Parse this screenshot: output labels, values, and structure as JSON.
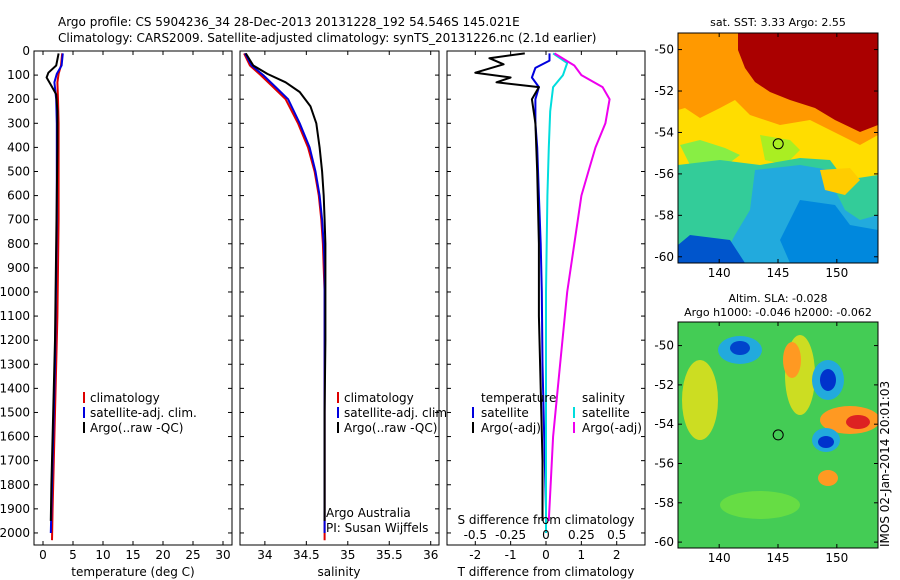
{
  "title_line1": "Argo profile: CS 5904236_34 28-Dec-2013 20131228_192 54.546S 145.021E",
  "title_line2": "Climatology: CARS2009. Satellite-adjusted climatology: synTS_20131226.nc (2.1d earlier)",
  "colors": {
    "climatology": "#dd0000",
    "satellite": "#0000dd",
    "argo": "#000000",
    "sat_s": "#00dddd",
    "argo_s": "#ee00ee"
  },
  "chart_data": [
    {
      "type": "line",
      "id": "temperature",
      "xlabel": "temperature (deg C)",
      "ylabel": "",
      "xlim": [
        -1.5,
        31.5
      ],
      "ylim": [
        2050,
        0
      ],
      "xticks": [
        0,
        5,
        10,
        15,
        20,
        25,
        30
      ],
      "xtick_labels": [
        "0",
        "5",
        "10",
        "15",
        "20",
        "25",
        "30"
      ],
      "yticks": [
        0,
        100,
        200,
        300,
        400,
        500,
        600,
        700,
        800,
        900,
        1000,
        1100,
        1200,
        1300,
        1400,
        1500,
        1600,
        1700,
        1800,
        1900,
        2000
      ],
      "ytick_labels": [
        "0",
        "100",
        "200",
        "300",
        "400",
        "500",
        "600",
        "700",
        "800",
        "900",
        "1000",
        "1100",
        "1200",
        "1300",
        "1400",
        "1500",
        "1600",
        "1700",
        "1800",
        "1900",
        "2000"
      ],
      "legend": {
        "position": "bottom-right",
        "entries": [
          "climatology",
          "satellite-adj. clim.",
          "Argo(..raw -QC)"
        ]
      },
      "series": [
        {
          "name": "climatology",
          "color": "climatology",
          "points": [
            [
              3.2,
              10
            ],
            [
              3.0,
              60
            ],
            [
              2.6,
              95
            ],
            [
              2.4,
              130
            ],
            [
              2.5,
              200
            ],
            [
              2.6,
              300
            ],
            [
              2.6,
              500
            ],
            [
              2.6,
              700
            ],
            [
              2.5,
              900
            ],
            [
              2.4,
              1100
            ],
            [
              2.2,
              1300
            ],
            [
              2.0,
              1500
            ],
            [
              1.8,
              1700
            ],
            [
              1.6,
              1900
            ],
            [
              1.5,
              2030
            ]
          ]
        },
        {
          "name": "satellite-adj. clim.",
          "color": "satellite",
          "points": [
            [
              3.3,
              10
            ],
            [
              3.1,
              60
            ],
            [
              2.3,
              95
            ],
            [
              1.9,
              130
            ],
            [
              2.2,
              200
            ],
            [
              2.3,
              300
            ],
            [
              2.3,
              500
            ],
            [
              2.3,
              700
            ],
            [
              2.2,
              900
            ],
            [
              2.1,
              1100
            ],
            [
              2.0,
              1300
            ],
            [
              1.8,
              1500
            ],
            [
              1.6,
              1700
            ],
            [
              1.4,
              1900
            ],
            [
              1.3,
              2000
            ]
          ]
        },
        {
          "name": "Argo(..raw -QC)",
          "color": "argo",
          "points": [
            [
              2.6,
              10
            ],
            [
              2.2,
              60
            ],
            [
              0.9,
              90
            ],
            [
              0.6,
              110
            ],
            [
              1.3,
              140
            ],
            [
              2.2,
              180
            ],
            [
              2.4,
              250
            ],
            [
              2.4,
              400
            ],
            [
              2.3,
              600
            ],
            [
              2.2,
              800
            ],
            [
              2.1,
              1000
            ],
            [
              2.0,
              1200
            ],
            [
              1.8,
              1400
            ],
            [
              1.6,
              1600
            ],
            [
              1.4,
              1800
            ],
            [
              1.3,
              1950
            ]
          ]
        }
      ]
    },
    {
      "type": "line",
      "id": "salinity",
      "xlabel": "salinity",
      "ylabel": "",
      "xlim": [
        33.7,
        36.1
      ],
      "ylim": [
        2050,
        0
      ],
      "xticks": [
        34,
        34.5,
        35,
        35.5,
        36
      ],
      "xtick_labels": [
        "34",
        "34.5",
        "35",
        "35.5",
        "36"
      ],
      "legend": {
        "position": "bottom-right",
        "entries": [
          "climatology",
          "satellite-adj. clim.",
          "Argo(..raw -QC)"
        ]
      },
      "annotation": [
        "Argo Australia",
        "PI: Susan Wijffels"
      ],
      "series": [
        {
          "name": "climatology",
          "color": "climatology",
          "points": [
            [
              33.75,
              10
            ],
            [
              33.82,
              60
            ],
            [
              33.95,
              100
            ],
            [
              34.1,
              150
            ],
            [
              34.25,
              200
            ],
            [
              34.4,
              300
            ],
            [
              34.52,
              400
            ],
            [
              34.6,
              500
            ],
            [
              34.65,
              600
            ],
            [
              34.68,
              700
            ],
            [
              34.7,
              800
            ],
            [
              34.71,
              900
            ],
            [
              34.72,
              1000
            ],
            [
              34.72,
              1200
            ],
            [
              34.72,
              1500
            ],
            [
              34.72,
              1800
            ],
            [
              34.72,
              2030
            ]
          ]
        },
        {
          "name": "satellite-adj. clim.",
          "color": "satellite",
          "points": [
            [
              33.76,
              10
            ],
            [
              33.84,
              60
            ],
            [
              33.98,
              100
            ],
            [
              34.13,
              150
            ],
            [
              34.28,
              200
            ],
            [
              34.42,
              300
            ],
            [
              34.54,
              400
            ],
            [
              34.61,
              500
            ],
            [
              34.66,
              600
            ],
            [
              34.69,
              700
            ],
            [
              34.71,
              800
            ],
            [
              34.72,
              900
            ],
            [
              34.72,
              1000
            ],
            [
              34.72,
              1300
            ],
            [
              34.72,
              1600
            ],
            [
              34.72,
              1900
            ],
            [
              34.72,
              2000
            ]
          ]
        },
        {
          "name": "Argo(..raw -QC)",
          "color": "argo",
          "points": [
            [
              33.77,
              10
            ],
            [
              33.86,
              60
            ],
            [
              34.03,
              95
            ],
            [
              34.25,
              130
            ],
            [
              34.42,
              170
            ],
            [
              34.55,
              230
            ],
            [
              34.62,
              300
            ],
            [
              34.66,
              400
            ],
            [
              34.69,
              500
            ],
            [
              34.71,
              600
            ],
            [
              34.72,
              700
            ],
            [
              34.73,
              800
            ],
            [
              34.73,
              900
            ],
            [
              34.73,
              1000
            ],
            [
              34.73,
              1200
            ],
            [
              34.72,
              1500
            ],
            [
              34.72,
              1800
            ],
            [
              34.72,
              1950
            ]
          ]
        }
      ]
    },
    {
      "type": "line",
      "id": "difference",
      "xlabel": "T difference from climatology",
      "xlabel_top": "S difference from climatology",
      "xlim": [
        -2.8,
        2.8
      ],
      "ylim": [
        2050,
        0
      ],
      "xticks": [
        -2,
        -1,
        0,
        1,
        2
      ],
      "xtick_labels": [
        "-2",
        "-1",
        "0",
        "1",
        "2"
      ],
      "sticks": [
        -0.5,
        -0.25,
        0,
        0.25,
        0.5
      ],
      "stick_labels": [
        "-0.5",
        "-0.25",
        "0",
        "0.25",
        "0.5"
      ],
      "legend": {
        "position": "bottom",
        "temp_title": "temperature",
        "sal_title": "salinity",
        "temp_entries": [
          "satellite",
          "Argo(-adj)"
        ],
        "sal_entries": [
          "satellite",
          "Argo(-adj)"
        ]
      },
      "series": [
        {
          "name": "T satellite",
          "color": "satellite",
          "points": [
            [
              0.1,
              10
            ],
            [
              0.1,
              40
            ],
            [
              -0.3,
              70
            ],
            [
              -0.4,
              110
            ],
            [
              -0.2,
              150
            ],
            [
              -0.3,
              200
            ],
            [
              -0.3,
              300
            ],
            [
              -0.25,
              400
            ],
            [
              -0.2,
              600
            ],
            [
              -0.15,
              800
            ],
            [
              -0.12,
              1000
            ],
            [
              -0.1,
              1300
            ],
            [
              -0.05,
              1600
            ],
            [
              0,
              1900
            ],
            [
              0,
              2000
            ]
          ]
        },
        {
          "name": "T Argo(-adj)",
          "color": "argo",
          "points": [
            [
              -0.6,
              10
            ],
            [
              -1.6,
              30
            ],
            [
              -1.2,
              55
            ],
            [
              -2.0,
              90
            ],
            [
              -1.0,
              110
            ],
            [
              -1.4,
              130
            ],
            [
              -0.2,
              150
            ],
            [
              -0.4,
              200
            ],
            [
              -0.3,
              300
            ],
            [
              -0.25,
              500
            ],
            [
              -0.2,
              800
            ],
            [
              -0.2,
              1100
            ],
            [
              -0.15,
              1400
            ],
            [
              -0.1,
              1700
            ],
            [
              -0.1,
              1950
            ]
          ]
        },
        {
          "name": "S satellite",
          "color": "sat_s",
          "points": [
            [
              0.05,
              10
            ],
            [
              0.15,
              50
            ],
            [
              0.12,
              100
            ],
            [
              0.05,
              150
            ],
            [
              0.03,
              250
            ],
            [
              0.02,
              400
            ],
            [
              0.01,
              600
            ],
            [
              0.0,
              1000
            ],
            [
              0.0,
              1500
            ],
            [
              0.0,
              2000
            ]
          ]
        },
        {
          "name": "S Argo(-adj)",
          "color": "argo_s",
          "points": [
            [
              0.06,
              10
            ],
            [
              0.2,
              60
            ],
            [
              0.25,
              100
            ],
            [
              0.4,
              150
            ],
            [
              0.45,
              200
            ],
            [
              0.42,
              300
            ],
            [
              0.35,
              400
            ],
            [
              0.3,
              500
            ],
            [
              0.25,
              600
            ],
            [
              0.2,
              800
            ],
            [
              0.15,
              1000
            ],
            [
              0.1,
              1300
            ],
            [
              0.05,
              1600
            ],
            [
              0.02,
              1950
            ]
          ]
        }
      ]
    },
    {
      "type": "heatmap",
      "id": "sst_map",
      "title": "sat. SST: 3.33 Argo: 2.55",
      "xlim": [
        136.5,
        153.5
      ],
      "ylim": [
        -60.3,
        -49.2
      ],
      "xticks": [
        140,
        145,
        150
      ],
      "xtick_labels": [
        "140",
        "145",
        "150"
      ],
      "yticks": [
        -50,
        -52,
        -54,
        -56,
        -58,
        -60
      ],
      "ytick_labels": [
        "-50",
        "-52",
        "-54",
        "-56",
        "-58",
        "-60"
      ],
      "marker": [
        145.021,
        -54.546
      ]
    },
    {
      "type": "heatmap",
      "id": "sla_map",
      "title": "Altim. SLA: -0.028",
      "subtitle": "Argo h1000: -0.046 h2000: -0.062",
      "xlim": [
        136.5,
        153.5
      ],
      "ylim": [
        -60.3,
        -48.8
      ],
      "xticks": [
        140,
        145,
        150
      ],
      "xtick_labels": [
        "140",
        "145",
        "150"
      ],
      "yticks": [
        -50,
        -52,
        -54,
        -56,
        -58,
        -60
      ],
      "ytick_labels": [
        "-50",
        "-52",
        "-54",
        "-56",
        "-58",
        "-60"
      ],
      "marker": [
        145.021,
        -54.546
      ]
    }
  ],
  "watermark": "IMOS 02-Jan-2014 20:01:03"
}
